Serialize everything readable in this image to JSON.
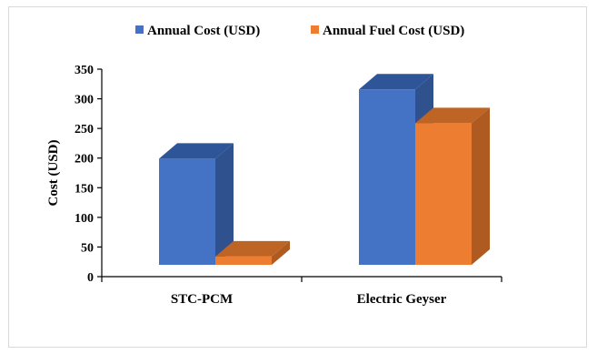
{
  "chart_data": {
    "type": "bar",
    "style": "3d-clustered-column",
    "categories": [
      "STC-PCM",
      "Electric Geyser"
    ],
    "series": [
      {
        "name": "Annual Cost (USD)",
        "values": [
          225,
          342
        ],
        "color": "#4472C4",
        "side_color": "#2F528F",
        "top_color": "#2E5598"
      },
      {
        "name": "Annual Fuel Cost (USD)",
        "values": [
          60,
          285
        ],
        "color": "#ED7D31",
        "side_color": "#AE5A21",
        "top_color": "#BE6424"
      }
    ],
    "ylabel": "Cost (USD)",
    "xlabel": "",
    "ylim": [
      0,
      350
    ],
    "yticks": [
      "0",
      "50",
      "100",
      "150",
      "200",
      "250",
      "300",
      "350"
    ],
    "legend_position": "top",
    "grid": false
  }
}
